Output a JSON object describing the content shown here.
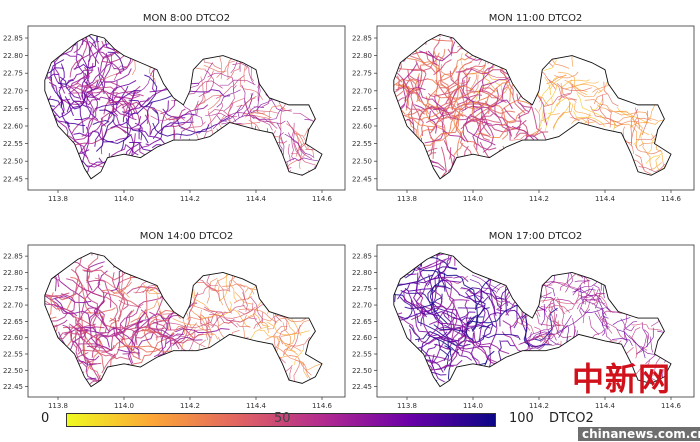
{
  "chart_data": [
    {
      "type": "map",
      "title": "MON 8:00 DTCO2",
      "mean_level": 65
    },
    {
      "type": "map",
      "title": "MON 11:00 DTCO2",
      "mean_level": 38
    },
    {
      "type": "map",
      "title": "MON 14:00 DTCO2",
      "mean_level": 45
    },
    {
      "type": "map",
      "title": "MON 17:00 DTCO2",
      "mean_level": 75
    }
  ],
  "axes": {
    "xticks": [
      "113.8",
      "114.0",
      "114.2",
      "114.4",
      "114.6"
    ],
    "yticks": [
      "22.85",
      "22.80",
      "22.75",
      "22.70",
      "22.65",
      "22.60",
      "22.55",
      "22.50",
      "22.45"
    ],
    "xlim": [
      113.71,
      114.66
    ],
    "ylim": [
      22.42,
      22.88
    ]
  },
  "colorbar": {
    "min_label": "0",
    "mid_label": "50",
    "max_label": "100",
    "label": "DTCO2",
    "colormap": "plasma_r",
    "colors": [
      "#f0f921",
      "#fca636",
      "#e16462",
      "#b12a90",
      "#6a00a8",
      "#0d0887"
    ]
  },
  "watermark": {
    "logo": "中新网",
    "site": "chinanews.com.cn"
  }
}
